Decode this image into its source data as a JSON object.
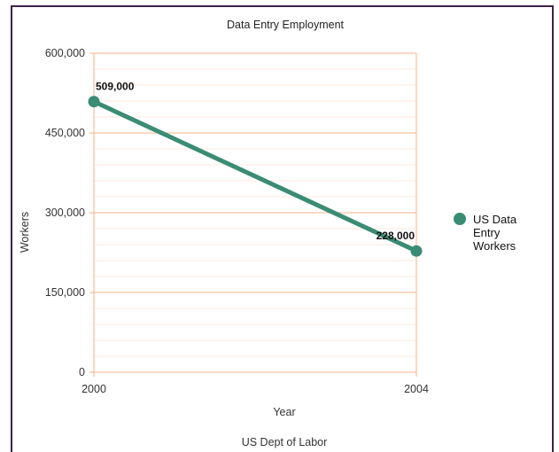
{
  "chart_data": {
    "type": "line",
    "title": "Data Entry Employment",
    "xlabel": "Year",
    "ylabel": "Workers",
    "footer": "US Dept of Labor",
    "x": [
      "2000",
      "2004"
    ],
    "ylim": [
      0,
      600000
    ],
    "yticks": [
      "0",
      "150,000",
      "300,000",
      "450,000",
      "600,000"
    ],
    "ytick_values": [
      0,
      150000,
      300000,
      450000,
      600000
    ],
    "series": [
      {
        "name": "US Data Entry Workers",
        "legend_lines": [
          "US Data",
          "Entry",
          "Workers"
        ],
        "values": [
          509000,
          228000
        ],
        "labels": [
          "509,000",
          "228,000"
        ],
        "color": "#3a8c74"
      }
    ],
    "grid": true,
    "grid_color": "#f4b387",
    "legend_position": "right"
  }
}
